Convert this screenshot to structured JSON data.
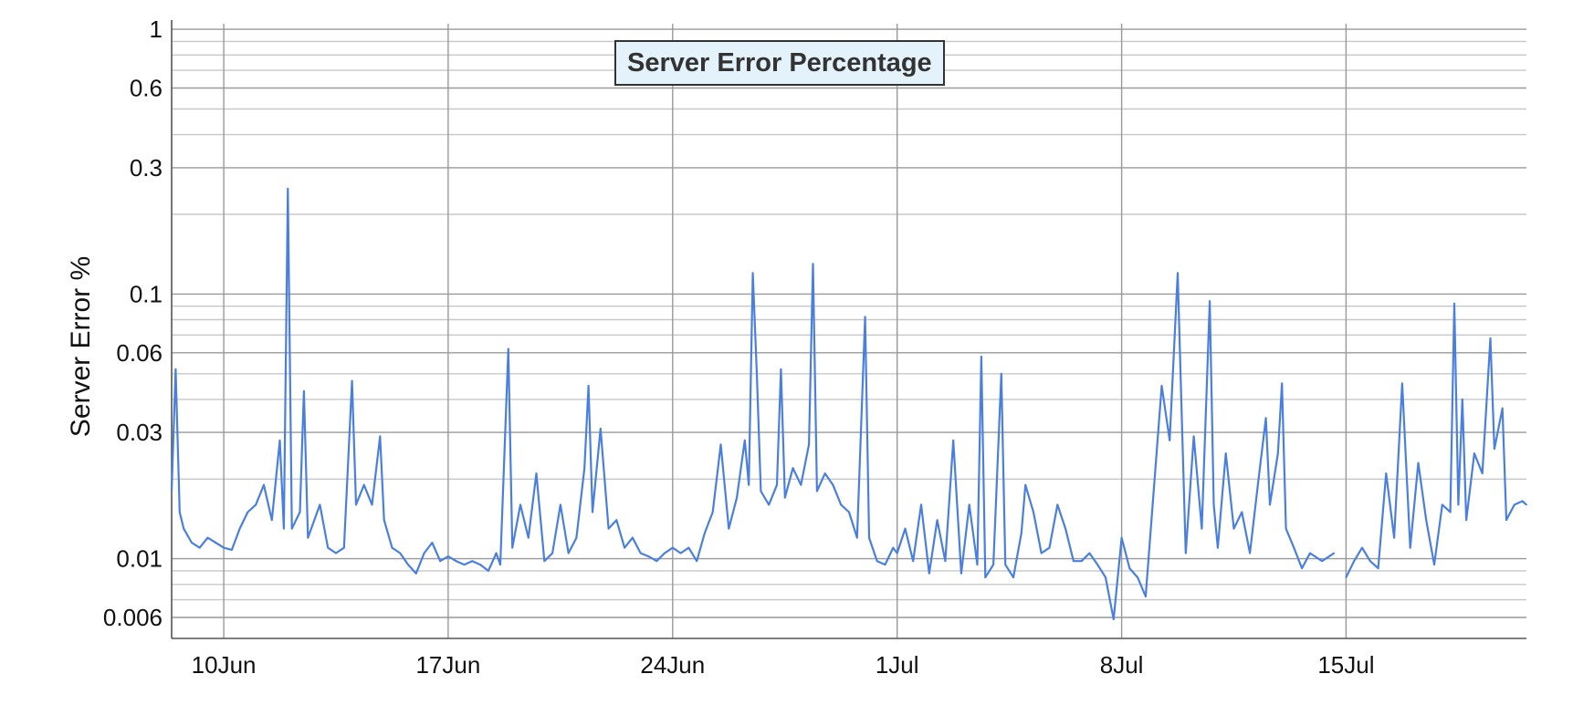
{
  "chart_data": {
    "type": "line",
    "title": "Server Error Percentage",
    "xlabel": "",
    "ylabel": "Server Error %",
    "y_scale": "log",
    "ylim": [
      0.005,
      1.05
    ],
    "y_ticks": [
      {
        "value": 1,
        "label": "1"
      },
      {
        "value": 0.6,
        "label": "0.6"
      },
      {
        "value": 0.3,
        "label": "0.3"
      },
      {
        "value": 0.1,
        "label": "0.1"
      },
      {
        "value": 0.06,
        "label": "0.06"
      },
      {
        "value": 0.03,
        "label": "0.03"
      },
      {
        "value": 0.01,
        "label": "0.01"
      },
      {
        "value": 0.006,
        "label": "0.006"
      }
    ],
    "y_minor_gridlines": [
      0.007,
      0.008,
      0.009,
      0.02,
      0.04,
      0.05,
      0.07,
      0.08,
      0.09,
      0.2,
      0.4,
      0.5,
      0.7,
      0.8,
      0.9
    ],
    "x_ticks": [
      {
        "value": "2024-06-10",
        "label": "10Jun"
      },
      {
        "value": "2024-06-17",
        "label": "17Jun"
      },
      {
        "value": "2024-06-24",
        "label": "24Jun"
      },
      {
        "value": "2024-07-01",
        "label": "1Jul"
      },
      {
        "value": "2024-07-08",
        "label": "8Jul"
      },
      {
        "value": "2024-07-15",
        "label": "15Jul"
      }
    ],
    "xlim": [
      "2024-06-08 09:00",
      "2024-07-20 15:00"
    ],
    "grid": true,
    "legend": "none",
    "colors": {
      "line": "#4a7fe0",
      "grid_major": "#999999",
      "grid_minor": "#c8c8c8",
      "axis": "#555555",
      "title_bg": "#e4f3fb",
      "title_border": "#333333"
    },
    "series": [
      {
        "values": [
          [
            "2024-06-08 09:00",
            0.018
          ],
          [
            "2024-06-08 12:00",
            0.052
          ],
          [
            "2024-06-08 15:00",
            0.015
          ],
          [
            "2024-06-08 18:00",
            0.013
          ],
          [
            "2024-06-09 00:00",
            0.0115
          ],
          [
            "2024-06-09 06:00",
            0.011
          ],
          [
            "2024-06-09 12:00",
            0.012
          ],
          [
            "2024-06-09 18:00",
            0.0115
          ],
          [
            "2024-06-10 00:00",
            0.011
          ],
          [
            "2024-06-10 06:00",
            0.0108
          ],
          [
            "2024-06-10 12:00",
            0.013
          ],
          [
            "2024-06-10 18:00",
            0.015
          ],
          [
            "2024-06-11 00:00",
            0.016
          ],
          [
            "2024-06-11 06:00",
            0.019
          ],
          [
            "2024-06-11 12:00",
            0.014
          ],
          [
            "2024-06-11 18:00",
            0.028
          ],
          [
            "2024-06-11 21:00",
            0.013
          ],
          [
            "2024-06-12 00:00",
            0.25
          ],
          [
            "2024-06-12 03:00",
            0.013
          ],
          [
            "2024-06-12 09:00",
            0.015
          ],
          [
            "2024-06-12 12:00",
            0.043
          ],
          [
            "2024-06-12 15:00",
            0.012
          ],
          [
            "2024-06-13 00:00",
            0.016
          ],
          [
            "2024-06-13 06:00",
            0.011
          ],
          [
            "2024-06-13 12:00",
            0.0105
          ],
          [
            "2024-06-13 18:00",
            0.011
          ],
          [
            "2024-06-14 00:00",
            0.047
          ],
          [
            "2024-06-14 03:00",
            0.016
          ],
          [
            "2024-06-14 09:00",
            0.019
          ],
          [
            "2024-06-14 15:00",
            0.016
          ],
          [
            "2024-06-14 21:00",
            0.029
          ],
          [
            "2024-06-15 00:00",
            0.014
          ],
          [
            "2024-06-15 06:00",
            0.011
          ],
          [
            "2024-06-15 12:00",
            0.0105
          ],
          [
            "2024-06-15 18:00",
            0.0095
          ],
          [
            "2024-06-16 00:00",
            0.0088
          ],
          [
            "2024-06-16 06:00",
            0.0105
          ],
          [
            "2024-06-16 12:00",
            0.0115
          ],
          [
            "2024-06-16 18:00",
            0.0098
          ],
          [
            "2024-06-17 00:00",
            0.0102
          ],
          [
            "2024-06-17 06:00",
            0.0098
          ],
          [
            "2024-06-17 12:00",
            0.0095
          ],
          [
            "2024-06-17 18:00",
            0.0098
          ],
          [
            "2024-06-18 00:00",
            0.0095
          ],
          [
            "2024-06-18 06:00",
            0.009
          ],
          [
            "2024-06-18 12:00",
            0.0105
          ],
          [
            "2024-06-18 15:00",
            0.0095
          ],
          [
            "2024-06-18 21:00",
            0.062
          ],
          [
            "2024-06-19 00:00",
            0.011
          ],
          [
            "2024-06-19 06:00",
            0.016
          ],
          [
            "2024-06-19 12:00",
            0.012
          ],
          [
            "2024-06-19 18:00",
            0.021
          ],
          [
            "2024-06-20 00:00",
            0.0098
          ],
          [
            "2024-06-20 06:00",
            0.0105
          ],
          [
            "2024-06-20 12:00",
            0.016
          ],
          [
            "2024-06-20 18:00",
            0.0105
          ],
          [
            "2024-06-21 00:00",
            0.012
          ],
          [
            "2024-06-21 06:00",
            0.022
          ],
          [
            "2024-06-21 09:00",
            0.045
          ],
          [
            "2024-06-21 12:00",
            0.015
          ],
          [
            "2024-06-21 18:00",
            0.031
          ],
          [
            "2024-06-22 00:00",
            0.013
          ],
          [
            "2024-06-22 06:00",
            0.014
          ],
          [
            "2024-06-22 12:00",
            0.011
          ],
          [
            "2024-06-22 18:00",
            0.012
          ],
          [
            "2024-06-23 00:00",
            0.0105
          ],
          [
            "2024-06-23 06:00",
            0.0102
          ],
          [
            "2024-06-23 12:00",
            0.0098
          ],
          [
            "2024-06-23 18:00",
            0.0105
          ],
          [
            "2024-06-24 00:00",
            0.011
          ],
          [
            "2024-06-24 06:00",
            0.0105
          ],
          [
            "2024-06-24 12:00",
            0.011
          ],
          [
            "2024-06-24 18:00",
            0.0098
          ],
          [
            "2024-06-25 00:00",
            0.0125
          ],
          [
            "2024-06-25 06:00",
            0.015
          ],
          [
            "2024-06-25 12:00",
            0.027
          ],
          [
            "2024-06-25 18:00",
            0.013
          ],
          [
            "2024-06-26 00:00",
            0.017
          ],
          [
            "2024-06-26 06:00",
            0.028
          ],
          [
            "2024-06-26 09:00",
            0.019
          ],
          [
            "2024-06-26 12:00",
            0.12
          ],
          [
            "2024-06-26 15:00",
            0.05
          ],
          [
            "2024-06-26 18:00",
            0.018
          ],
          [
            "2024-06-27 00:00",
            0.016
          ],
          [
            "2024-06-27 06:00",
            0.019
          ],
          [
            "2024-06-27 09:00",
            0.052
          ],
          [
            "2024-06-27 12:00",
            0.017
          ],
          [
            "2024-06-27 18:00",
            0.022
          ],
          [
            "2024-06-28 00:00",
            0.019
          ],
          [
            "2024-06-28 06:00",
            0.027
          ],
          [
            "2024-06-28 09:00",
            0.13
          ],
          [
            "2024-06-28 12:00",
            0.018
          ],
          [
            "2024-06-28 18:00",
            0.021
          ],
          [
            "2024-06-29 00:00",
            0.019
          ],
          [
            "2024-06-29 06:00",
            0.016
          ],
          [
            "2024-06-29 12:00",
            0.015
          ],
          [
            "2024-06-29 18:00",
            0.012
          ],
          [
            "2024-06-30 00:00",
            0.082
          ],
          [
            "2024-06-30 03:00",
            0.012
          ],
          [
            "2024-06-30 09:00",
            0.0098
          ],
          [
            "2024-06-30 15:00",
            0.0095
          ],
          [
            "2024-06-30 21:00",
            0.011
          ],
          [
            "2024-07-01 00:00",
            0.0105
          ],
          [
            "2024-07-01 06:00",
            0.013
          ],
          [
            "2024-07-01 12:00",
            0.0098
          ],
          [
            "2024-07-01 18:00",
            0.016
          ],
          [
            "2024-07-02 00:00",
            0.0088
          ],
          [
            "2024-07-02 06:00",
            0.014
          ],
          [
            "2024-07-02 12:00",
            0.0098
          ],
          [
            "2024-07-02 18:00",
            0.028
          ],
          [
            "2024-07-03 00:00",
            0.0088
          ],
          [
            "2024-07-03 06:00",
            0.016
          ],
          [
            "2024-07-03 12:00",
            0.0095
          ],
          [
            "2024-07-03 15:00",
            0.058
          ],
          [
            "2024-07-03 18:00",
            0.0085
          ],
          [
            "2024-07-04 00:00",
            0.0095
          ],
          [
            "2024-07-04 06:00",
            0.05
          ],
          [
            "2024-07-04 09:00",
            0.0095
          ],
          [
            "2024-07-04 15:00",
            0.0085
          ],
          [
            "2024-07-04 21:00",
            0.0125
          ],
          [
            "2024-07-05 00:00",
            0.019
          ],
          [
            "2024-07-05 06:00",
            0.015
          ],
          [
            "2024-07-05 12:00",
            0.0105
          ],
          [
            "2024-07-05 18:00",
            0.011
          ],
          [
            "2024-07-06 00:00",
            0.016
          ],
          [
            "2024-07-06 06:00",
            0.013
          ],
          [
            "2024-07-06 12:00",
            0.0098
          ],
          [
            "2024-07-06 18:00",
            0.0098
          ],
          [
            "2024-07-07 00:00",
            0.0105
          ],
          [
            "2024-07-07 06:00",
            0.0095
          ],
          [
            "2024-07-07 12:00",
            0.0085
          ],
          [
            "2024-07-07 18:00",
            0.0059
          ],
          [
            "2024-07-08 00:00",
            0.012
          ],
          [
            "2024-07-08 06:00",
            0.0092
          ],
          [
            "2024-07-08 12:00",
            0.0085
          ],
          [
            "2024-07-08 18:00",
            0.0072
          ],
          [
            "2024-07-09 00:00",
            0.018
          ],
          [
            "2024-07-09 06:00",
            0.045
          ],
          [
            "2024-07-09 12:00",
            0.028
          ],
          [
            "2024-07-09 18:00",
            0.12
          ],
          [
            "2024-07-09 21:00",
            0.035
          ],
          [
            "2024-07-10 00:00",
            0.0105
          ],
          [
            "2024-07-10 06:00",
            0.029
          ],
          [
            "2024-07-10 12:00",
            0.013
          ],
          [
            "2024-07-10 18:00",
            0.094
          ],
          [
            "2024-07-10 21:00",
            0.016
          ],
          [
            "2024-07-11 00:00",
            0.011
          ],
          [
            "2024-07-11 06:00",
            0.025
          ],
          [
            "2024-07-11 12:00",
            0.013
          ],
          [
            "2024-07-11 18:00",
            0.015
          ],
          [
            "2024-07-12 00:00",
            0.0105
          ],
          [
            "2024-07-12 06:00",
            0.019
          ],
          [
            "2024-07-12 12:00",
            0.034
          ],
          [
            "2024-07-12 15:00",
            0.016
          ],
          [
            "2024-07-12 21:00",
            0.025
          ],
          [
            "2024-07-13 00:00",
            0.046
          ],
          [
            "2024-07-13 03:00",
            0.013
          ],
          [
            "2024-07-13 09:00",
            0.011
          ],
          [
            "2024-07-13 15:00",
            0.0092
          ],
          [
            "2024-07-13 21:00",
            0.0105
          ],
          [
            "2024-07-14 06:00",
            0.0098
          ],
          [
            "2024-07-14 15:00",
            0.0105
          ],
          [
            "2024-07-14 18:00",
            null
          ],
          [
            "2024-07-15 00:00",
            0.0085
          ],
          [
            "2024-07-15 06:00",
            0.0098
          ],
          [
            "2024-07-15 12:00",
            0.011
          ],
          [
            "2024-07-15 18:00",
            0.0098
          ],
          [
            "2024-07-16 00:00",
            0.0092
          ],
          [
            "2024-07-16 06:00",
            0.021
          ],
          [
            "2024-07-16 12:00",
            0.012
          ],
          [
            "2024-07-16 18:00",
            0.046
          ],
          [
            "2024-07-17 00:00",
            0.011
          ],
          [
            "2024-07-17 06:00",
            0.023
          ],
          [
            "2024-07-17 12:00",
            0.014
          ],
          [
            "2024-07-17 18:00",
            0.0095
          ],
          [
            "2024-07-18 00:00",
            0.016
          ],
          [
            "2024-07-18 06:00",
            0.015
          ],
          [
            "2024-07-18 09:00",
            0.092
          ],
          [
            "2024-07-18 12:00",
            0.016
          ],
          [
            "2024-07-18 15:00",
            0.04
          ],
          [
            "2024-07-18 18:00",
            0.014
          ],
          [
            "2024-07-19 00:00",
            0.025
          ],
          [
            "2024-07-19 06:00",
            0.021
          ],
          [
            "2024-07-19 12:00",
            0.068
          ],
          [
            "2024-07-19 15:00",
            0.026
          ],
          [
            "2024-07-19 21:00",
            0.037
          ],
          [
            "2024-07-20 00:00",
            0.014
          ],
          [
            "2024-07-20 06:00",
            0.016
          ],
          [
            "2024-07-20 12:00",
            0.0165
          ],
          [
            "2024-07-20 15:00",
            0.016
          ]
        ]
      }
    ]
  }
}
